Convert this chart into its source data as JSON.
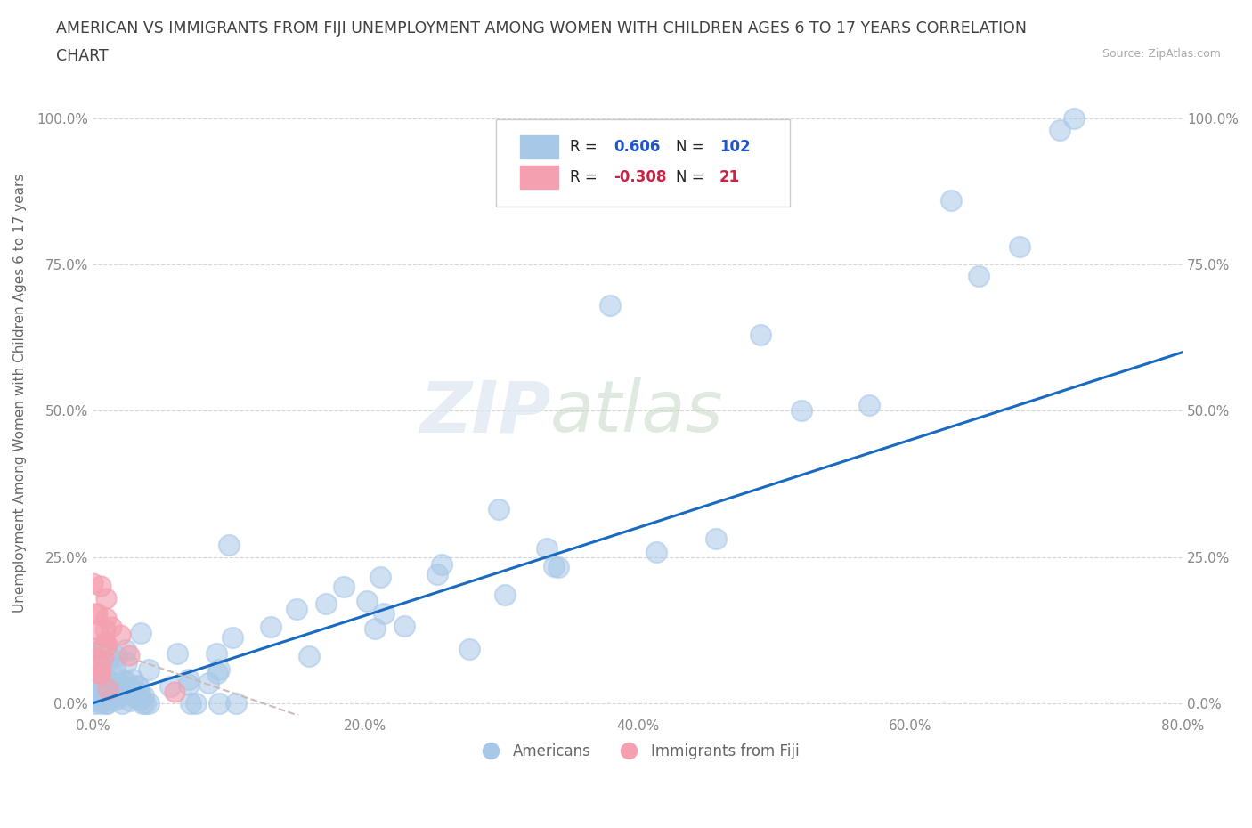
{
  "title_line1": "AMERICAN VS IMMIGRANTS FROM FIJI UNEMPLOYMENT AMONG WOMEN WITH CHILDREN AGES 6 TO 17 YEARS CORRELATION",
  "title_line2": "CHART",
  "source": "Source: ZipAtlas.com",
  "ylabel": "Unemployment Among Women with Children Ages 6 to 17 years",
  "xlabel_ticks": [
    "0.0%",
    "20.0%",
    "40.0%",
    "60.0%",
    "80.0%"
  ],
  "ytick_labels": [
    "0.0%",
    "25.0%",
    "50.0%",
    "75.0%",
    "100.0%"
  ],
  "xlim": [
    0.0,
    0.8
  ],
  "ylim": [
    -0.02,
    1.08
  ],
  "R_american": 0.606,
  "N_american": 102,
  "R_fiji": -0.308,
  "N_fiji": 21,
  "american_color": "#a8c8e8",
  "fiji_color": "#f4a0b0",
  "trendline_american_color": "#1a6bbf",
  "trendline_fiji_color": "#cc3355",
  "legend_label_american": "Americans",
  "legend_label_fiji": "Immigrants from Fiji",
  "watermark_zip": "ZIP",
  "watermark_atlas": "atlas",
  "background_color": "#ffffff",
  "grid_color": "#cccccc",
  "title_color": "#404040",
  "legend_r_color_american": "#2255cc",
  "legend_r_color_fiji": "#cc2244",
  "axis_label_color": "#888888"
}
